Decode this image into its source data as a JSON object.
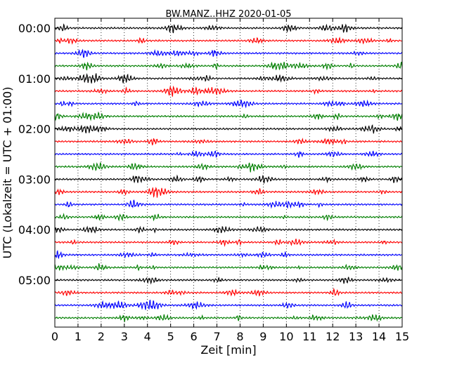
{
  "chart_data": {
    "type": "line",
    "title": "BW.MANZ..HHZ 2020-01-05",
    "xlabel": "Zeit  [min]",
    "ylabel": "UTC (Lokalzeit = UTC + 01:00)",
    "xlim": [
      0,
      15
    ],
    "x_ticks": [
      "0",
      "1",
      "2",
      "3",
      "4",
      "5",
      "6",
      "7",
      "8",
      "9",
      "10",
      "11",
      "12",
      "13",
      "14",
      "15"
    ],
    "y_ticks": [
      "00:00",
      "01:00",
      "02:00",
      "03:00",
      "04:00",
      "05:00"
    ],
    "grid": "vertical dotted",
    "trace_count": 24,
    "trace_minutes": 15,
    "trace_colors": [
      "#000000",
      "#ff0000",
      "#0000ff",
      "#007f00"
    ]
  }
}
